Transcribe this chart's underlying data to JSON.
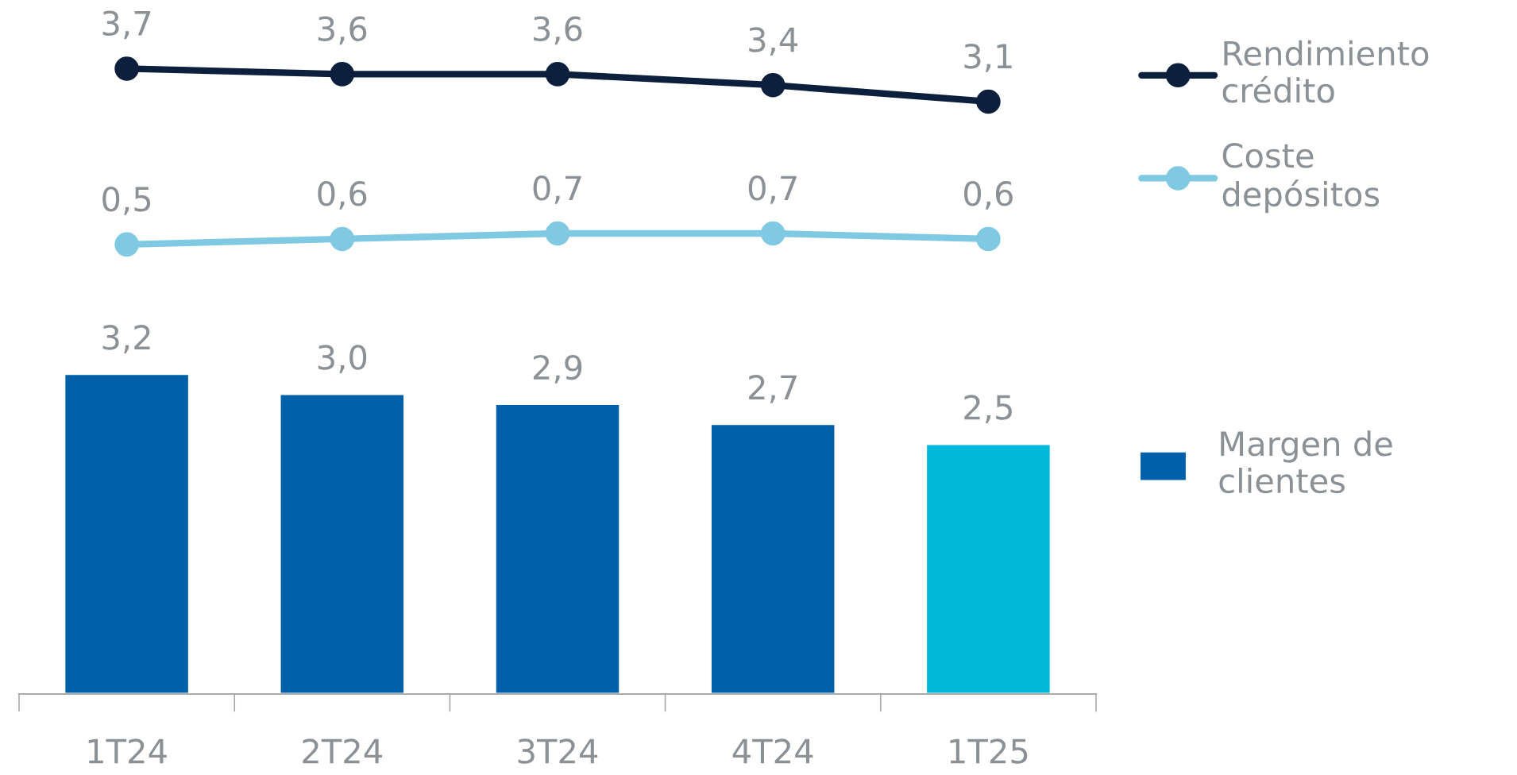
{
  "chart_data": [
    {
      "type": "line",
      "categories": [
        null,
        null,
        null,
        null,
        null
      ],
      "tick_labels": false,
      "marker": "circle",
      "line_style": "solid",
      "legend": "right",
      "series": [
        {
          "name": "Rendimiento\ncrédito",
          "color": "#0c1f3d",
          "values": [
            3.7,
            3.6,
            3.6,
            3.4,
            3.1
          ],
          "value_labels": [
            "3,7",
            "3,6",
            "3,6",
            "3,4",
            "3,1"
          ]
        },
        {
          "name": "Coste\ndepósitos",
          "color": "#80c9e2",
          "values": [
            0.5,
            0.6,
            0.7,
            0.7,
            0.6
          ],
          "value_labels": [
            "0,5",
            "0,6",
            "0,7",
            "0,7",
            "0,6"
          ]
        }
      ]
    },
    {
      "type": "bar",
      "categories": [
        "1T24",
        "2T24",
        "3T24",
        "4T24",
        "1T25"
      ],
      "tick_labels": "x",
      "legend": "right",
      "series": [
        {
          "name": "Margen de\nclientes",
          "color": "#0060aa",
          "colors": [
            "#0060aa",
            "#0060aa",
            "#0060aa",
            "#0060aa",
            "#00b8d9"
          ],
          "values": [
            3.2,
            3.0,
            2.9,
            2.7,
            2.5
          ],
          "value_labels": [
            "3,2",
            "3,0",
            "2,9",
            "2,7",
            "2,5"
          ]
        }
      ]
    }
  ]
}
